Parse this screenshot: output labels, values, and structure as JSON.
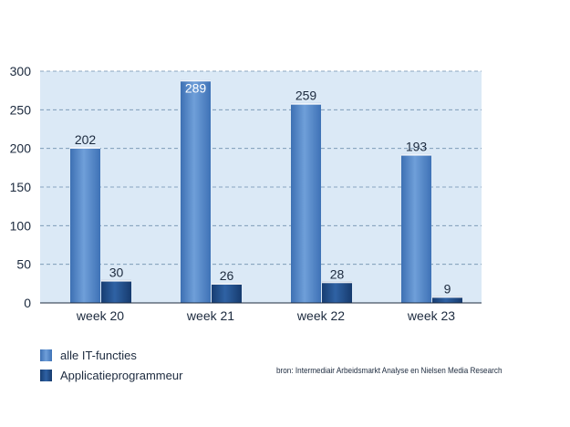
{
  "chart_data": {
    "type": "bar",
    "categories": [
      "week 20",
      "week 21",
      "week 22",
      "week 23"
    ],
    "series": [
      {
        "name": "alle IT-functies",
        "values": [
          202,
          289,
          259,
          193
        ],
        "color": "#4f86c9"
      },
      {
        "name": "Applicatieprogrammeur",
        "values": [
          30,
          26,
          28,
          9
        ],
        "color": "#1f4e8c"
      }
    ],
    "ylim": [
      0,
      300
    ],
    "yticks": [
      0,
      50,
      100,
      150,
      200,
      250,
      300
    ],
    "grid": true,
    "legend_position": "bottom-left",
    "plot_background": "#dbe9f6"
  },
  "legend": {
    "items": [
      {
        "label": "alle IT-functies",
        "color": "#4f86c9"
      },
      {
        "label": "Applicatieprogrammeur",
        "color": "#1f4e8c"
      }
    ]
  },
  "source": "bron: Intermediair Arbeidsmarkt Analyse en Nielsen Media Research"
}
